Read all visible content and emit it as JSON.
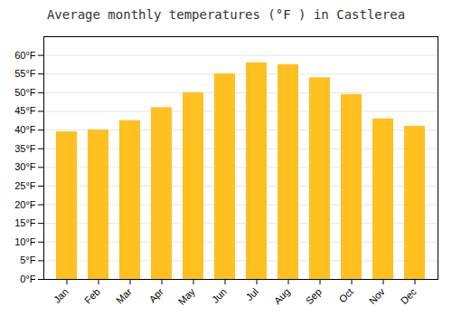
{
  "chart_data": {
    "type": "bar",
    "title": "Average monthly temperatures (°F ) in Castlerea",
    "categories": [
      "Jan",
      "Feb",
      "Mar",
      "Apr",
      "May",
      "Jun",
      "Jul",
      "Aug",
      "Sep",
      "Oct",
      "Nov",
      "Dec"
    ],
    "values": [
      39.5,
      40.0,
      42.5,
      46.0,
      50.0,
      55.0,
      58.0,
      57.5,
      54.0,
      49.5,
      43.0,
      41.0
    ],
    "color": "#FFC020",
    "ylim": [
      0,
      65
    ],
    "yticks": [
      {
        "value": 0,
        "label": "0°F"
      },
      {
        "value": 5,
        "label": "5°F"
      },
      {
        "value": 10,
        "label": "10°F"
      },
      {
        "value": 15,
        "label": "15°F"
      },
      {
        "value": 20,
        "label": "20°F"
      },
      {
        "value": 25,
        "label": "25°F"
      },
      {
        "value": 30,
        "label": "30°F"
      },
      {
        "value": 35,
        "label": "35°F"
      },
      {
        "value": 40,
        "label": "40°F"
      },
      {
        "value": 45,
        "label": "45°F"
      },
      {
        "value": 50,
        "label": "50°F"
      },
      {
        "value": 55,
        "label": "55°F"
      },
      {
        "value": 60,
        "label": "60°F"
      }
    ],
    "grid": true
  }
}
